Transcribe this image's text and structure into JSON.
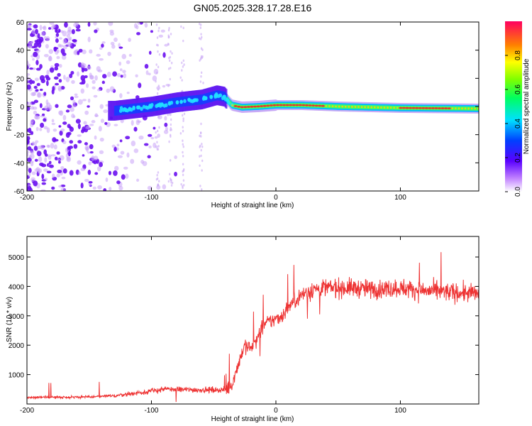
{
  "title": "GN05.2025.328.17.28.E16",
  "chart_data": [
    {
      "type": "heatmap",
      "name": "spectrogram",
      "xlabel": "Height of straight line (km)",
      "ylabel": "Frequency (Hz)",
      "xlim": [
        -200,
        163
      ],
      "ylim": [
        -60,
        60
      ],
      "x_ticks": [
        -200,
        -100,
        0,
        100
      ],
      "y_ticks": [
        -60,
        -40,
        -20,
        0,
        20,
        40,
        60
      ],
      "colorbar": {
        "label": "Normalized spectral amplitude",
        "range": [
          0,
          1
        ],
        "ticks": [
          0.0,
          0.2,
          0.4,
          0.6,
          0.8
        ]
      },
      "ridge": {
        "description_points_x": [
          -130,
          -100,
          -80,
          -60,
          -48,
          -42,
          -36,
          -28,
          -15,
          0,
          20,
          50,
          100,
          163
        ],
        "description_points_y": [
          -3,
          0,
          3,
          5,
          8,
          7,
          1,
          -0.5,
          0,
          1,
          1,
          0,
          -1,
          -1.5
        ]
      }
    },
    {
      "type": "line",
      "name": "snr",
      "xlabel": "Height of straight line (km)",
      "ylabel": "SNR (10 * v/v)",
      "xlim": [
        -200,
        163
      ],
      "ylim": [
        0,
        5700
      ],
      "x_ticks": [
        -200,
        -100,
        0,
        100
      ],
      "y_ticks": [
        1000,
        2000,
        3000,
        4000,
        5000
      ],
      "color": "#ee3333",
      "trend_x": [
        -200,
        -150,
        -130,
        -110,
        -90,
        -60,
        -40,
        -35,
        -30,
        -25,
        -20,
        -15,
        -10,
        -5,
        0,
        5,
        10,
        15,
        20,
        25,
        30,
        40,
        60,
        80,
        100,
        120,
        140,
        163
      ],
      "trend_y": [
        220,
        240,
        280,
        380,
        500,
        480,
        480,
        700,
        1400,
        2000,
        1900,
        2200,
        2700,
        2800,
        2900,
        3000,
        3300,
        3500,
        3700,
        3800,
        3900,
        3950,
        3950,
        3900,
        3950,
        3850,
        3800,
        3750
      ]
    }
  ]
}
